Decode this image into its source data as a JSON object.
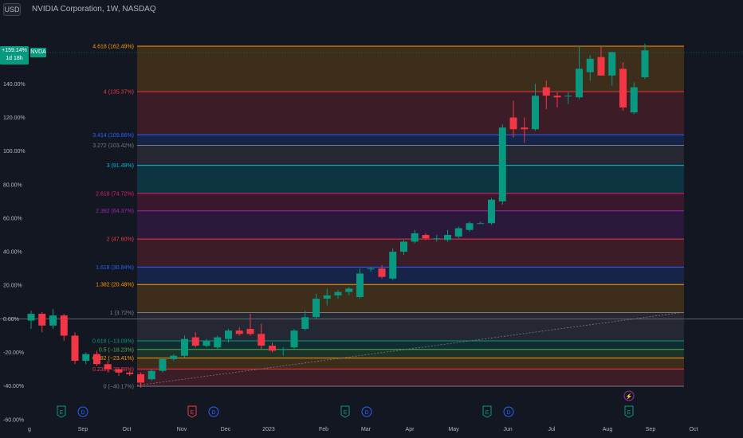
{
  "header": {
    "currency": "USD",
    "title": "NVIDIA Corporation, 1W, NASDAQ"
  },
  "price_tag": {
    "line1": "+159.14%",
    "line2": "1d 18h",
    "symbol": "NVDA"
  },
  "colors": {
    "background": "#131722",
    "up": "#089981",
    "down": "#f23645",
    "grid_text": "#b2b5be",
    "trend": "#787b86"
  },
  "chart_data": {
    "type": "candlestick",
    "title": "NVIDIA Corporation, 1W, NASDAQ",
    "y_unit": "percent change",
    "ylim": [
      -62,
      173
    ],
    "y_ticks": [
      {
        "v": 140,
        "label": "140.00%"
      },
      {
        "v": 120,
        "label": "120.00%"
      },
      {
        "v": 100,
        "label": "100.00%"
      },
      {
        "v": 80,
        "label": "80.00%"
      },
      {
        "v": 60,
        "label": "60.00%"
      },
      {
        "v": 40,
        "label": "40.00%"
      },
      {
        "v": 20,
        "label": "20.00%"
      },
      {
        "v": 0,
        "label": "0.00%"
      },
      {
        "v": -20,
        "label": "-20.00%"
      },
      {
        "v": -40,
        "label": "-40.00%"
      },
      {
        "v": -60,
        "label": "-60.00%"
      }
    ],
    "x_labels": [
      "g",
      "Sep",
      "Oct",
      "Nov",
      "Dec",
      "2023",
      "Feb",
      "Mar",
      "Apr",
      "May",
      "Jun",
      "Jul",
      "Aug",
      "Sep",
      "Oct"
    ],
    "fib_levels": [
      {
        "ratio": "0",
        "label": "0 (−40.17%)",
        "pct": -40.17,
        "color": "#787b86"
      },
      {
        "ratio": "0.236",
        "label": "0.236 (−29.88%)",
        "pct": -29.88,
        "color": "#f23645"
      },
      {
        "ratio": "0.382",
        "label": "0.382 (−23.41%)",
        "pct": -23.41,
        "color": "#ff9800"
      },
      {
        "ratio": "0.5",
        "label": "0.5 (−18.23%)",
        "pct": -18.23,
        "color": "#4caf50"
      },
      {
        "ratio": "0.618",
        "label": "0.618 (−13.09%)",
        "pct": -13.09,
        "color": "#089981"
      },
      {
        "ratio": "1",
        "label": "1 (3.72%)",
        "pct": 3.72,
        "color": "#787b86"
      },
      {
        "ratio": "1.382",
        "label": "1.382 (20.48%)",
        "pct": 20.48,
        "color": "#ff9800"
      },
      {
        "ratio": "1.618",
        "label": "1.618 (30.84%)",
        "pct": 30.84,
        "color": "#2962ff"
      },
      {
        "ratio": "2",
        "label": "2 (47.60%)",
        "pct": 47.6,
        "color": "#f23645"
      },
      {
        "ratio": "2.382",
        "label": "2.382 (64.37%)",
        "pct": 64.37,
        "color": "#9c27b0"
      },
      {
        "ratio": "2.618",
        "label": "2.618 (74.72%)",
        "pct": 74.72,
        "color": "#e91e63"
      },
      {
        "ratio": "3",
        "label": "3 (91.49%)",
        "pct": 91.49,
        "color": "#00bcd4"
      },
      {
        "ratio": "3.272",
        "label": "3.272 (103.42%)",
        "pct": 103.42,
        "color": "#787b86"
      },
      {
        "ratio": "3.414",
        "label": "3.414 (109.66%)",
        "pct": 109.66,
        "color": "#2962ff"
      },
      {
        "ratio": "4",
        "label": "4 (135.37%)",
        "pct": 135.37,
        "color": "#f23645"
      },
      {
        "ratio": "4.618",
        "label": "4.618 (162.49%)",
        "pct": 162.49,
        "color": "#ff9800"
      }
    ],
    "candles": [
      {
        "o": -1,
        "h": 5,
        "l": -6,
        "c": 3
      },
      {
        "o": 3,
        "h": 4,
        "l": -8,
        "c": -4
      },
      {
        "o": -4,
        "h": 6,
        "l": -6,
        "c": 2
      },
      {
        "o": 2,
        "h": 3,
        "l": -13,
        "c": -10
      },
      {
        "o": -10,
        "h": -8,
        "l": -27,
        "c": -25
      },
      {
        "o": -25,
        "h": -20,
        "l": -27,
        "c": -21
      },
      {
        "o": -21,
        "h": -19,
        "l": -28,
        "c": -27
      },
      {
        "o": -27,
        "h": -25,
        "l": -32,
        "c": -30
      },
      {
        "o": -30,
        "h": -29,
        "l": -34,
        "c": -32
      },
      {
        "o": -32,
        "h": -31,
        "l": -34,
        "c": -33
      },
      {
        "o": -33,
        "h": -32,
        "l": -41,
        "c": -38
      },
      {
        "o": -36,
        "h": -30,
        "l": -37,
        "c": -31
      },
      {
        "o": -31,
        "h": -23,
        "l": -32,
        "c": -24
      },
      {
        "o": -24,
        "h": -21,
        "l": -25,
        "c": -22
      },
      {
        "o": -22,
        "h": -10,
        "l": -23,
        "c": -12
      },
      {
        "o": -11,
        "h": -8,
        "l": -17,
        "c": -16
      },
      {
        "o": -16,
        "h": -12,
        "l": -17,
        "c": -13
      },
      {
        "o": -17,
        "h": -10,
        "l": -18,
        "c": -11
      },
      {
        "o": -12,
        "h": -6,
        "l": -14,
        "c": -7
      },
      {
        "o": -7,
        "h": -5,
        "l": -10,
        "c": -9
      },
      {
        "o": -6,
        "h": 3,
        "l": -10,
        "c": -9
      },
      {
        "o": -9,
        "h": -3,
        "l": -18,
        "c": -16
      },
      {
        "o": -16,
        "h": -14,
        "l": -20,
        "c": -19
      },
      {
        "o": -18,
        "h": -17,
        "l": -22,
        "c": -18
      },
      {
        "o": -17,
        "h": -6,
        "l": -18,
        "c": -7
      },
      {
        "o": -6,
        "h": 5,
        "l": -7,
        "c": 1
      },
      {
        "o": 1,
        "h": 15,
        "l": 0,
        "c": 12
      },
      {
        "o": 12,
        "h": 18,
        "l": 8,
        "c": 14
      },
      {
        "o": 14,
        "h": 17,
        "l": 12,
        "c": 16
      },
      {
        "o": 16,
        "h": 19,
        "l": 14,
        "c": 18
      },
      {
        "o": 13,
        "h": 30,
        "l": 12,
        "c": 27
      },
      {
        "o": 30,
        "h": 31,
        "l": 28,
        "c": 30
      },
      {
        "o": 30,
        "h": 32,
        "l": 24,
        "c": 25
      },
      {
        "o": 24,
        "h": 42,
        "l": 23,
        "c": 40
      },
      {
        "o": 40,
        "h": 47,
        "l": 38,
        "c": 46
      },
      {
        "o": 46,
        "h": 53,
        "l": 45,
        "c": 51
      },
      {
        "o": 50,
        "h": 51,
        "l": 47,
        "c": 48
      },
      {
        "o": 48,
        "h": 50,
        "l": 46,
        "c": 48
      },
      {
        "o": 47,
        "h": 53,
        "l": 46,
        "c": 50
      },
      {
        "o": 49,
        "h": 55,
        "l": 48,
        "c": 54
      },
      {
        "o": 53,
        "h": 58,
        "l": 52,
        "c": 57
      },
      {
        "o": 57,
        "h": 58,
        "l": 57,
        "c": 57
      },
      {
        "o": 57,
        "h": 72,
        "l": 56,
        "c": 71
      },
      {
        "o": 70,
        "h": 116,
        "l": 68,
        "c": 114
      },
      {
        "o": 120,
        "h": 130,
        "l": 108,
        "c": 113
      },
      {
        "o": 114,
        "h": 120,
        "l": 105,
        "c": 113
      },
      {
        "o": 113,
        "h": 140,
        "l": 112,
        "c": 133
      },
      {
        "o": 138,
        "h": 142,
        "l": 125,
        "c": 133
      },
      {
        "o": 133,
        "h": 135,
        "l": 126,
        "c": 132
      },
      {
        "o": 133,
        "h": 135,
        "l": 128,
        "c": 133
      },
      {
        "o": 132,
        "h": 162,
        "l": 131,
        "c": 149
      },
      {
        "o": 147,
        "h": 157,
        "l": 142,
        "c": 155
      },
      {
        "o": 156,
        "h": 162,
        "l": 145,
        "c": 145
      },
      {
        "o": 145,
        "h": 159,
        "l": 139,
        "c": 159
      },
      {
        "o": 149,
        "h": 153,
        "l": 124,
        "c": 126
      },
      {
        "o": 123,
        "h": 141,
        "l": 122,
        "c": 138
      },
      {
        "o": 144,
        "h": 164,
        "l": 143,
        "c": 160
      }
    ],
    "events": [
      {
        "label": "E",
        "x": "Aug",
        "color": "#089981"
      },
      {
        "label": "D",
        "x": "Sep",
        "color": "#2962ff"
      },
      {
        "label": "E",
        "x": "Nov",
        "color": "#f23645"
      },
      {
        "label": "D",
        "x": "Dec",
        "color": "#2962ff"
      },
      {
        "label": "E",
        "x": "Feb",
        "color": "#089981"
      },
      {
        "label": "D",
        "x": "Mar",
        "color": "#2962ff"
      },
      {
        "label": "E",
        "x": "May",
        "color": "#089981"
      },
      {
        "label": "D",
        "x": "Jun",
        "color": "#2962ff"
      },
      {
        "label": "E",
        "x": "Aug",
        "color": "#089981"
      },
      {
        "label": "⚡",
        "x": "Aug",
        "color": "#9c27b0"
      }
    ]
  }
}
